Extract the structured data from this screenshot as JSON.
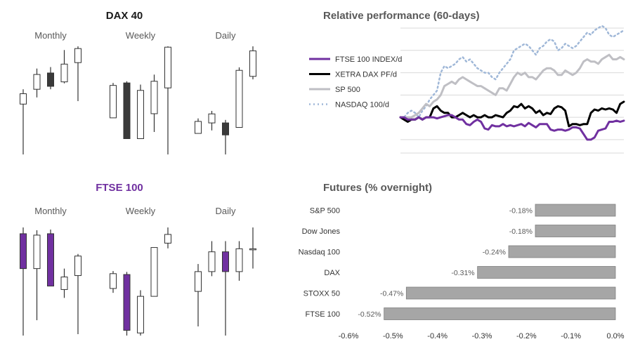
{
  "colors": {
    "bull": "#ffffff",
    "bear_dax": "#3a3a3a",
    "bear_ftse": "#7030a0",
    "ftse_title": "#7030a0",
    "wick": "#333333",
    "bar_fill": "#a6a6a6",
    "bar_stroke": "#7f7f7f"
  },
  "dax": {
    "title": "DAX 40",
    "panels": [
      {
        "label": "Monthly",
        "candles": [
          {
            "o": 3.6,
            "c": 5.0,
            "h": 5.6,
            "l": -3.2
          },
          {
            "o": 5.6,
            "c": 7.6,
            "h": 8.4,
            "l": 4.5
          },
          {
            "o": 7.8,
            "c": 6.0,
            "h": 8.6,
            "l": 5.6
          },
          {
            "o": 6.6,
            "c": 9.0,
            "h": 10.9,
            "l": 6.4
          },
          {
            "o": 9.2,
            "c": 11.1,
            "h": 11.4,
            "l": 4.0
          }
        ]
      },
      {
        "label": "Weekly",
        "candles": [
          {
            "o": 1.8,
            "c": 5.7,
            "h": 6.0,
            "l": 1.8
          },
          {
            "o": 6.0,
            "c": -0.7,
            "h": 6.2,
            "l": -0.7
          },
          {
            "o": -0.7,
            "c": 5.1,
            "h": 5.8,
            "l": -0.7
          },
          {
            "o": 2.3,
            "c": 6.2,
            "h": 7.0,
            "l": 0.1
          },
          {
            "o": 5.4,
            "c": 10.3,
            "h": 10.4,
            "l": -2.6
          }
        ]
      },
      {
        "label": "Daily",
        "candles": [
          {
            "o": 2.2,
            "c": 3.0,
            "h": 3.2,
            "l": 2.2
          },
          {
            "o": 2.9,
            "c": 3.5,
            "h": 3.7,
            "l": 2.4
          },
          {
            "o": 2.9,
            "c": 2.1,
            "h": 3.1,
            "l": 0.8
          },
          {
            "o": 2.6,
            "c": 6.4,
            "h": 6.6,
            "l": 2.6
          },
          {
            "o": 6.0,
            "c": 7.7,
            "h": 8.0,
            "l": 5.8
          }
        ]
      }
    ]
  },
  "ftse": {
    "title": "FTSE 100",
    "panels": [
      {
        "label": "Monthly",
        "candles": [
          {
            "o": 8.0,
            "c": 3.0,
            "h": 8.9,
            "l": -6.6
          },
          {
            "o": 3.0,
            "c": 7.8,
            "h": 8.5,
            "l": -4.4
          },
          {
            "o": 8.0,
            "c": 0.5,
            "h": 8.6,
            "l": 0.5
          },
          {
            "o": 0.0,
            "c": 1.8,
            "h": 3.0,
            "l": -1.2
          },
          {
            "o": 2.0,
            "c": 4.8,
            "h": 5.1,
            "l": -6.4
          }
        ]
      },
      {
        "label": "Weekly",
        "candles": [
          {
            "o": 2.6,
            "c": 4.3,
            "h": 4.6,
            "l": 2.1
          },
          {
            "o": 4.2,
            "c": -2.2,
            "h": 4.5,
            "l": -2.8
          },
          {
            "o": -2.5,
            "c": 1.7,
            "h": 2.4,
            "l": -2.8
          },
          {
            "o": 1.7,
            "c": 7.3,
            "h": 7.3,
            "l": 1.7
          },
          {
            "o": 7.8,
            "c": 8.8,
            "h": 9.6,
            "l": 7.2
          }
        ]
      },
      {
        "label": "Daily",
        "candles": [
          {
            "o": 3.1,
            "c": 4.4,
            "h": 4.9,
            "l": 0.8
          },
          {
            "o": 4.4,
            "c": 5.7,
            "h": 6.4,
            "l": 4.1
          },
          {
            "o": 5.7,
            "c": 4.4,
            "h": 6.4,
            "l": 0.2
          },
          {
            "o": 4.4,
            "c": 5.9,
            "h": 6.4,
            "l": 3.8
          },
          {
            "o": 5.9,
            "c": 5.9,
            "h": 7.3,
            "l": 4.6
          }
        ]
      }
    ]
  },
  "chart_data": [
    {
      "type": "line",
      "title": "Relative performance (60-days)",
      "xlabel": "",
      "ylabel": "",
      "grid": true,
      "legend_position": "left",
      "ylim": [
        -0.16,
        0.4
      ],
      "series": [
        {
          "name": "FTSE 100 INDEX/d",
          "color": "#7030a0",
          "width": 3,
          "dash": "",
          "values": [
            0.0,
            0.0,
            -0.01,
            -0.01,
            -0.01,
            0.0,
            -0.01,
            0.0,
            0.0,
            0.0,
            -0.005,
            0.0,
            0.005,
            0.01,
            0.01,
            0.0,
            -0.01,
            -0.01,
            -0.03,
            -0.035,
            -0.02,
            -0.01,
            -0.02,
            -0.05,
            -0.055,
            -0.035,
            -0.04,
            -0.04,
            -0.03,
            -0.04,
            -0.035,
            -0.04,
            -0.035,
            -0.03,
            -0.04,
            -0.025,
            -0.035,
            -0.045,
            -0.03,
            -0.03,
            -0.03,
            -0.055,
            -0.06,
            -0.055,
            -0.055,
            -0.06,
            -0.055,
            -0.045,
            -0.045,
            -0.05,
            -0.075,
            -0.1,
            -0.1,
            -0.09,
            -0.06,
            -0.055,
            -0.05,
            -0.02,
            -0.02,
            -0.015,
            -0.02,
            -0.015
          ]
        },
        {
          "name": "XETRA DAX PF/d",
          "color": "#000000",
          "width": 3,
          "dash": "",
          "values": [
            0.0,
            -0.01,
            -0.02,
            -0.01,
            -0.01,
            0.0,
            -0.01,
            0.0,
            0.0,
            0.04,
            0.05,
            0.03,
            0.02,
            0.02,
            0.0,
            0.0,
            0.01,
            0.02,
            0.01,
            0.0,
            0.01,
            0.0,
            0.0,
            0.01,
            0.0,
            0.0,
            0.01,
            0.005,
            0.0,
            0.02,
            0.03,
            0.05,
            0.045,
            0.06,
            0.04,
            0.05,
            0.04,
            0.02,
            0.03,
            0.01,
            0.02,
            0.015,
            0.04,
            0.05,
            0.045,
            0.03,
            -0.04,
            -0.03,
            -0.03,
            -0.035,
            -0.03,
            -0.03,
            0.02,
            0.035,
            0.03,
            0.04,
            0.035,
            0.04,
            0.035,
            0.02,
            0.06,
            0.07
          ]
        },
        {
          "name": "SP 500",
          "color": "#bfbfc4",
          "width": 3,
          "dash": "",
          "values": [
            0.0,
            0.0,
            0.0,
            0.0,
            0.01,
            0.02,
            0.04,
            0.06,
            0.05,
            0.07,
            0.08,
            0.1,
            0.14,
            0.15,
            0.16,
            0.15,
            0.17,
            0.18,
            0.17,
            0.16,
            0.15,
            0.14,
            0.14,
            0.13,
            0.12,
            0.11,
            0.1,
            0.13,
            0.13,
            0.12,
            0.15,
            0.18,
            0.2,
            0.19,
            0.2,
            0.18,
            0.18,
            0.17,
            0.19,
            0.21,
            0.22,
            0.22,
            0.21,
            0.19,
            0.19,
            0.21,
            0.2,
            0.19,
            0.2,
            0.22,
            0.25,
            0.26,
            0.25,
            0.25,
            0.24,
            0.26,
            0.27,
            0.28,
            0.26,
            0.26,
            0.27,
            0.26
          ]
        },
        {
          "name": "NASDAQ 100/d",
          "color": "#a0b8d8",
          "width": 2.5,
          "dash": "2,4",
          "values": [
            0.0,
            0.0,
            0.02,
            0.03,
            0.02,
            0.0,
            0.03,
            0.05,
            0.08,
            0.1,
            0.12,
            0.2,
            0.23,
            0.22,
            0.23,
            0.24,
            0.26,
            0.27,
            0.25,
            0.26,
            0.24,
            0.22,
            0.21,
            0.2,
            0.2,
            0.18,
            0.17,
            0.2,
            0.22,
            0.24,
            0.26,
            0.3,
            0.31,
            0.32,
            0.33,
            0.32,
            0.3,
            0.28,
            0.31,
            0.32,
            0.34,
            0.35,
            0.34,
            0.3,
            0.31,
            0.33,
            0.32,
            0.31,
            0.32,
            0.34,
            0.36,
            0.38,
            0.37,
            0.39,
            0.4,
            0.41,
            0.4,
            0.37,
            0.36,
            0.37,
            0.38,
            0.39
          ]
        }
      ]
    },
    {
      "type": "bar",
      "orientation": "horizontal",
      "title": "Futures (% overnight)",
      "xlabel": "",
      "ylabel": "",
      "xlim": [
        -0.6,
        0.0
      ],
      "categories": [
        "S&P 500",
        "Dow Jones",
        "Nasdaq 100",
        "DAX",
        "STOXX 50",
        "FTSE 100"
      ],
      "values": [
        -0.18,
        -0.18,
        -0.24,
        -0.31,
        -0.47,
        -0.52
      ],
      "data_labels": [
        "-0.18%",
        "-0.18%",
        "-0.24%",
        "-0.31%",
        "-0.47%",
        "-0.52%"
      ],
      "ticks": [
        -0.6,
        -0.5,
        -0.4,
        -0.3,
        -0.2,
        -0.1,
        0.0
      ],
      "tick_labels": [
        "-0.6%",
        "-0.5%",
        "-0.4%",
        "-0.3%",
        "-0.2%",
        "-0.1%",
        "0.0%"
      ]
    }
  ]
}
